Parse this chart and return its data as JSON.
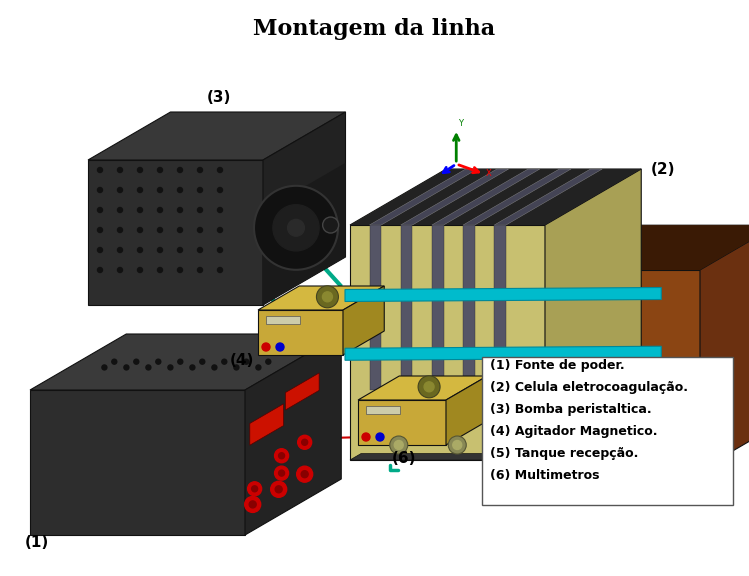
{
  "title": "Montagem da linha",
  "title_fontsize": 16,
  "background_color": "#ffffff",
  "legend_items": [
    "(1) Fonte de poder.",
    "(2) Celula eletrocoagulação.",
    "(3) Bomba peristaltica.",
    "(4) Agitador Magnetico.",
    "(5) Tanque recepção.",
    "(6) Multimetros"
  ],
  "label_fontsize": 11,
  "legend_fontsize": 9
}
